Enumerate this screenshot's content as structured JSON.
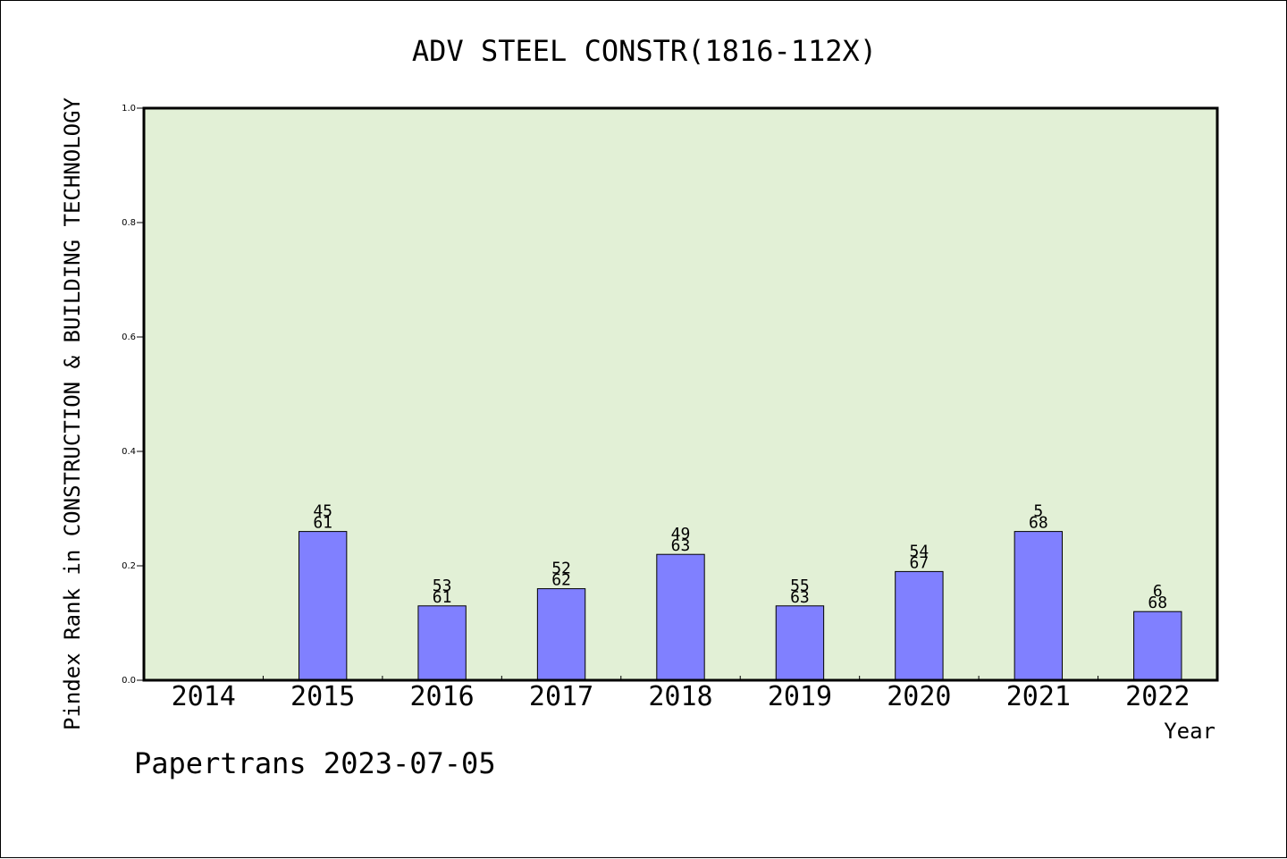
{
  "chart_data": {
    "type": "bar",
    "title": "ADV STEEL CONSTR(1816-112X)",
    "ylabel": "Pindex Rank in CONSTRUCTION & BUILDING TECHNOLOGY",
    "xlabel": "Year",
    "ylim": [
      0.0,
      1.0
    ],
    "yticks": [
      "0.0",
      "0.2",
      "0.4",
      "0.6",
      "0.8",
      "1.0"
    ],
    "categories": [
      "2014",
      "2015",
      "2016",
      "2017",
      "2018",
      "2019",
      "2020",
      "2021",
      "2022"
    ],
    "values": [
      0,
      0.26,
      0.13,
      0.16,
      0.22,
      0.13,
      0.19,
      0.26,
      0.12
    ],
    "labels_top": [
      "",
      "45",
      "53",
      "52",
      "49",
      "55",
      "54",
      "5",
      "6"
    ],
    "labels_bottom": [
      "",
      "61",
      "61",
      "62",
      "63",
      "63",
      "67",
      "68",
      "68"
    ],
    "grid": false,
    "legend": "none",
    "footer": "Papertrans 2023-07-05",
    "colors": {
      "plot_background": "#e2f0d6",
      "bar_fill": "#8080ff",
      "bar_stroke": "#000000",
      "axis": "#000000",
      "text": "#000000"
    }
  }
}
